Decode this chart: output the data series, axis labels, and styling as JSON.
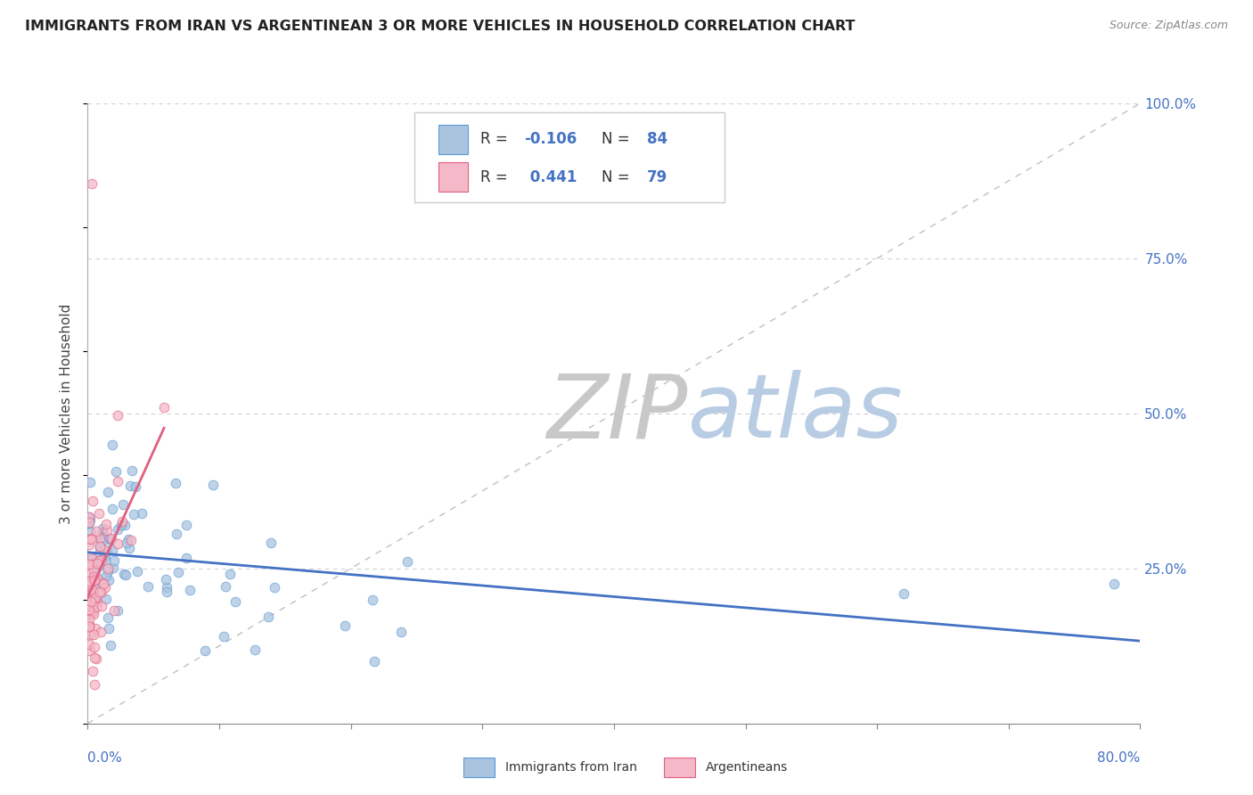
{
  "title": "IMMIGRANTS FROM IRAN VS ARGENTINEAN 3 OR MORE VEHICLES IN HOUSEHOLD CORRELATION CHART",
  "source": "Source: ZipAtlas.com",
  "ylabel_label": "3 or more Vehicles in Household",
  "legend_label1": "Immigrants from Iran",
  "legend_label2": "Argentineans",
  "R1": -0.106,
  "N1": 84,
  "R2": 0.441,
  "N2": 79,
  "color_blue_fill": "#aac4e0",
  "color_blue_edge": "#5b9bd5",
  "color_pink_fill": "#f4b8c8",
  "color_pink_edge": "#e06080",
  "color_trend_blue": "#4472c4",
  "color_trend_pink": "#e06080",
  "color_watermark_zip": "#c8c8c8",
  "color_watermark_atlas": "#b8cce4",
  "color_grid": "#d0d0d0",
  "color_diag": "#c0c0c0",
  "color_axis_label": "#4472c4",
  "xlim": [
    0.0,
    0.8
  ],
  "ylim": [
    0.0,
    1.0
  ],
  "yticks": [
    0.0,
    0.25,
    0.5,
    0.75,
    1.0
  ],
  "ytick_labels": [
    "",
    "25.0%",
    "50.0%",
    "75.0%",
    "100.0%"
  ]
}
